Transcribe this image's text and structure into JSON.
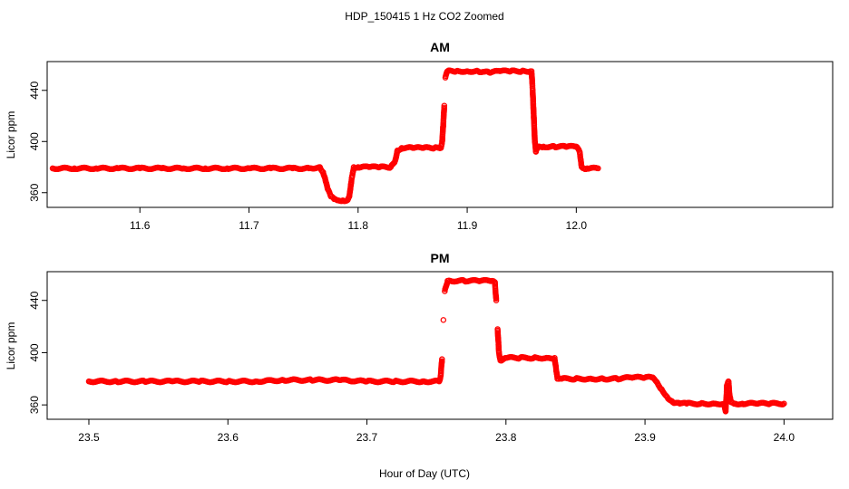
{
  "figure": {
    "title": "HDP_150415  1 Hz CO2 Zoomed",
    "xlabel": "Hour of Day (UTC)"
  },
  "colors": {
    "points": "#ff0000",
    "axis": "#000000",
    "background": "#ffffff"
  },
  "chart_data": [
    {
      "type": "scatter",
      "title": "AM",
      "xlabel": "",
      "ylabel": "Licor ppm",
      "xlim": [
        11.515,
        12.235
      ],
      "ylim": [
        348.5,
        462.5
      ],
      "xticks": [
        11.6,
        11.7,
        11.8,
        11.9,
        12.0
      ],
      "xtick_labels": [
        "11.6",
        "11.7",
        "11.8",
        "11.9",
        "12.0"
      ],
      "yticks": [
        360,
        400,
        440
      ],
      "ytick_labels": [
        "360",
        "400",
        "440"
      ],
      "grid": false,
      "marker": "open-circle",
      "series": [
        {
          "x": [
            11.52,
            11.54,
            11.56,
            11.58,
            11.6,
            11.62,
            11.64,
            11.66,
            11.68,
            11.7,
            11.72,
            11.74,
            11.755,
            11.765,
            11.768,
            11.77,
            11.772,
            11.775,
            11.778,
            11.782,
            11.786,
            11.79,
            11.792,
            11.793,
            11.794,
            11.795,
            11.796,
            11.8,
            11.81,
            11.82,
            11.83,
            11.834,
            11.836,
            11.84,
            11.85,
            11.86,
            11.87,
            11.876,
            11.877,
            11.878,
            11.879,
            11.88,
            11.882,
            11.89,
            11.9,
            11.91,
            11.92,
            11.93,
            11.94,
            11.95,
            11.958,
            11.959,
            11.96,
            11.961,
            11.962,
            11.963,
            11.965,
            11.97,
            11.98,
            11.99,
            12.0,
            12.003,
            12.004,
            12.005,
            12.007,
            12.01,
            12.02
          ],
          "y": [
            379,
            379,
            379,
            379,
            379,
            379,
            379,
            379,
            379,
            379,
            379,
            379,
            379,
            380,
            376,
            370,
            363,
            357,
            355,
            354,
            354,
            354,
            357,
            363,
            370,
            375,
            380,
            380,
            380,
            380,
            380,
            385,
            393,
            395,
            395,
            395,
            395,
            395,
            400,
            412,
            428,
            450,
            455,
            455,
            455,
            455,
            454,
            455,
            455,
            455,
            455,
            455,
            440,
            420,
            400,
            392,
            396,
            396,
            396,
            396,
            396,
            392,
            386,
            380,
            379,
            379,
            379
          ]
        }
      ]
    },
    {
      "type": "scatter",
      "title": "PM",
      "xlabel": "Hour of Day (UTC)",
      "ylabel": "Licor ppm",
      "xlim": [
        23.47,
        24.035
      ],
      "ylim": [
        349,
        462
      ],
      "xticks": [
        23.5,
        23.6,
        23.7,
        23.8,
        23.9,
        24.0
      ],
      "xtick_labels": [
        "23.5",
        "23.6",
        "23.7",
        "23.8",
        "23.9",
        "24.0"
      ],
      "yticks": [
        360,
        400,
        440
      ],
      "ytick_labels": [
        "360",
        "400",
        "440"
      ],
      "grid": false,
      "marker": "open-circle",
      "series": [
        {
          "x": [
            23.5,
            23.52,
            23.54,
            23.56,
            23.58,
            23.6,
            23.62,
            23.64,
            23.66,
            23.68,
            23.7,
            23.72,
            23.74,
            23.752,
            23.753,
            23.754,
            23.755,
            23.756,
            23.758,
            23.76,
            23.77,
            23.78,
            23.79,
            23.792,
            23.793,
            23.794,
            23.795,
            23.796,
            23.8,
            23.81,
            23.82,
            23.83,
            23.835,
            23.836,
            23.837,
            23.84,
            23.85,
            23.86,
            23.87,
            23.88,
            23.89,
            23.9,
            23.905,
            23.908,
            23.912,
            23.916,
            23.92,
            23.925,
            23.93,
            23.94,
            23.95,
            23.957,
            23.958,
            23.959,
            23.96,
            23.961,
            23.962,
            23.965,
            23.97,
            23.98,
            23.99,
            24.0
          ],
          "y": [
            378,
            378,
            378,
            378,
            378,
            378,
            378,
            379,
            379,
            379,
            378,
            378,
            378,
            378,
            382,
            395,
            425,
            447,
            455,
            455,
            455,
            455,
            455,
            454,
            440,
            418,
            400,
            394,
            396,
            396,
            396,
            396,
            396,
            388,
            380,
            380,
            380,
            380,
            380,
            380,
            381,
            381,
            381,
            378,
            372,
            366,
            362,
            361,
            361,
            361,
            361,
            361,
            355,
            375,
            378,
            366,
            362,
            361,
            361,
            361,
            361,
            361
          ]
        }
      ]
    }
  ]
}
